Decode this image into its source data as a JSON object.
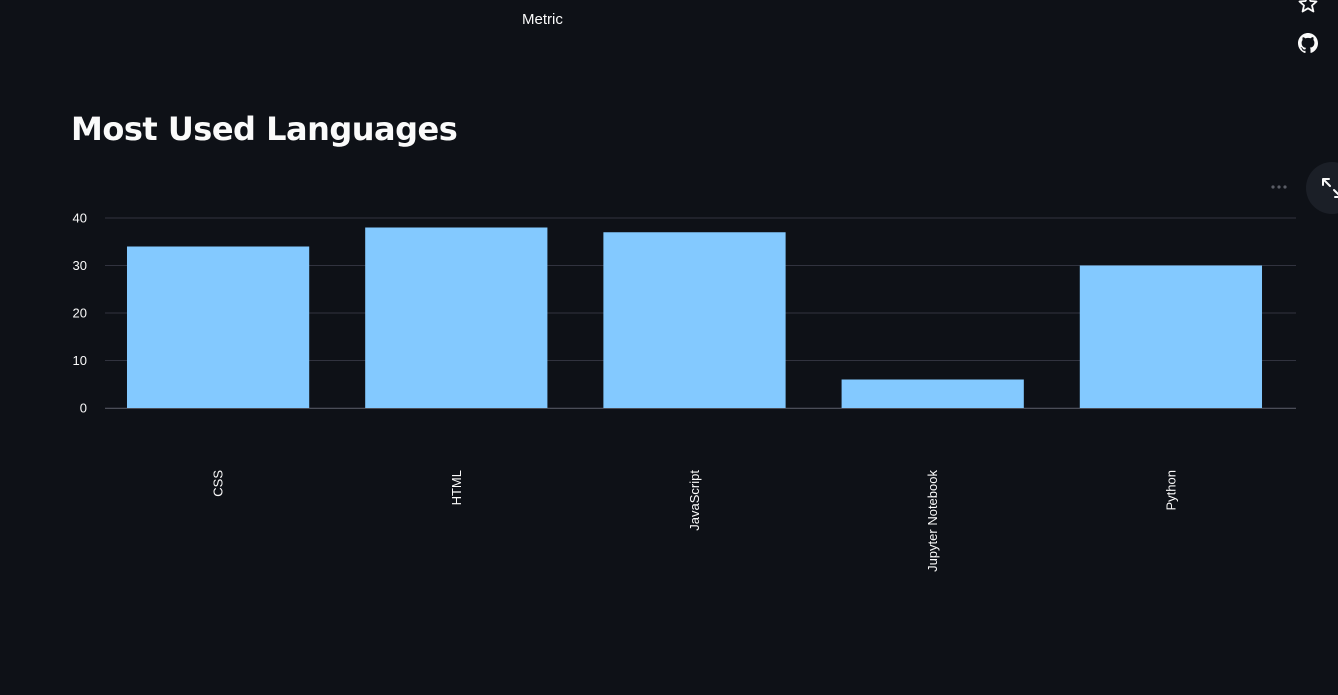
{
  "header": {
    "metric_label": "Metric"
  },
  "icons": {
    "star": "star-icon",
    "github": "github-icon",
    "more": "more-horizontal-icon",
    "expand": "fullscreen-icon"
  },
  "page": {
    "title": "Most Used Languages"
  },
  "colors": {
    "background": "#0e1117",
    "bar": "#83c9ff",
    "grid": "#31333f",
    "text": "#fafafa"
  },
  "chart_data": {
    "type": "bar",
    "categories": [
      "CSS",
      "HTML",
      "JavaScript",
      "Jupyter Notebook",
      "Python"
    ],
    "values": [
      34,
      38,
      37,
      6,
      30
    ],
    "ylim": [
      0,
      40
    ],
    "yticks": [
      0,
      10,
      20,
      30,
      40
    ],
    "grid": true,
    "legend": "none"
  }
}
